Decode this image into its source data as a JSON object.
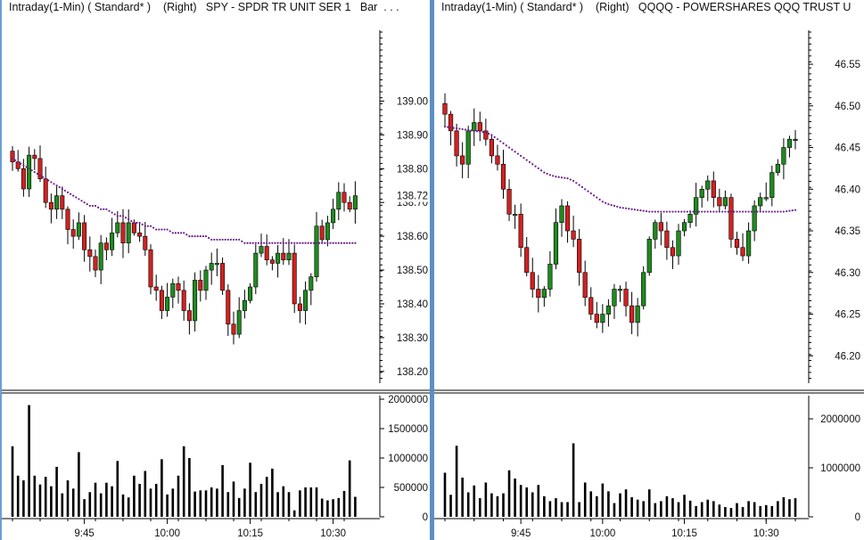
{
  "panels": [
    {
      "title": "Intraday(1-Min) ( Standard* )    (Right)   SPY - SPDR TR UNIT SER 1   Bar  . . ."
    },
    {
      "title": "Intraday(1-Min) ( Standard* )    (Right)   QQQQ - POWERSHARES QQQ TRUST U"
    }
  ],
  "colors": {
    "up": "#1e8b1e",
    "down": "#d42020",
    "ma": "#6b1f8a",
    "volume": "#000000",
    "divider": "#5b8fc8"
  },
  "chart_data": [
    {
      "type": "candlestick",
      "symbol": "SPY - SPDR TR UNIT SER 1",
      "price_ticks": [
        "139.00",
        "138.90",
        "138.80",
        "138.70",
        "138.60",
        "138.50",
        "138.40",
        "138.30",
        "138.20"
      ],
      "price_ylim": [
        138.16,
        139.22
      ],
      "last_price_label": "138.72",
      "volume_ticks": [
        "2000000",
        "1500000",
        "1000000",
        "500000",
        "0"
      ],
      "volume_ylim": [
        0,
        2000000
      ],
      "time_ticks": [
        "9:45",
        "10:00",
        "10:15",
        "10:30"
      ],
      "time_tick_index": [
        13,
        28,
        43,
        58
      ],
      "closes": [
        138.82,
        138.8,
        138.74,
        138.84,
        138.83,
        138.77,
        138.7,
        138.68,
        138.72,
        138.68,
        138.62,
        138.6,
        138.64,
        138.56,
        138.54,
        138.5,
        138.58,
        138.56,
        138.61,
        138.64,
        138.58,
        138.64,
        138.61,
        138.6,
        138.56,
        138.45,
        138.44,
        138.38,
        138.42,
        138.46,
        138.44,
        138.38,
        138.35,
        138.47,
        138.44,
        138.5,
        138.52,
        138.52,
        138.44,
        138.34,
        138.31,
        138.38,
        138.41,
        138.45,
        138.55,
        138.57,
        138.53,
        138.52,
        138.55,
        138.53,
        138.55,
        138.4,
        138.38,
        138.44,
        138.48,
        138.63,
        138.59,
        138.64,
        138.68,
        138.73,
        138.7,
        138.68,
        138.72
      ],
      "volume": [
        1200000,
        700000,
        620000,
        1900000,
        700000,
        550000,
        680000,
        520000,
        850000,
        400000,
        620000,
        480000,
        1100000,
        300000,
        420000,
        580000,
        400000,
        580000,
        520000,
        950000,
        380000,
        330000,
        700000,
        560000,
        780000,
        480000,
        560000,
        980000,
        380000,
        480000,
        700000,
        1200000,
        1000000,
        430000,
        450000,
        450000,
        500000,
        480000,
        880000,
        420000,
        600000,
        320000,
        480000,
        920000,
        420000,
        560000,
        680000,
        820000,
        420000,
        520000,
        420000,
        110000,
        450000,
        500000,
        500000,
        500000,
        310000,
        280000,
        300000,
        320000,
        440000,
        960000,
        340000
      ],
      "ma_line": [
        138.83,
        138.82,
        138.81,
        138.8,
        138.79,
        138.78,
        138.77,
        138.76,
        138.75,
        138.74,
        138.73,
        138.72,
        138.71,
        138.7,
        138.69,
        138.69,
        138.68,
        138.68,
        138.67,
        138.66,
        138.66,
        138.65,
        138.64,
        138.64,
        138.63,
        138.63,
        138.62,
        138.62,
        138.62,
        138.61,
        138.61,
        138.61,
        138.6,
        138.6,
        138.6,
        138.6,
        138.59,
        138.59,
        138.59,
        138.59,
        138.59,
        138.59,
        138.58,
        138.58,
        138.58,
        138.58,
        138.58,
        138.58,
        138.58,
        138.58,
        138.58,
        138.58,
        138.58,
        138.58,
        138.58,
        138.58,
        138.58,
        138.58,
        138.58,
        138.58,
        138.58,
        138.58,
        138.58
      ]
    },
    {
      "type": "candlestick",
      "symbol": "QQQQ - POWERSHARES QQQ TRUST U",
      "price_ticks": [
        "46.55",
        "46.50",
        "46.45",
        "46.40",
        "46.35",
        "46.30",
        "46.25",
        "46.20"
      ],
      "price_ylim": [
        46.165,
        46.595
      ],
      "volume_ticks": [
        "2000000",
        "1000000",
        "0"
      ],
      "volume_ylim": [
        0,
        2400000
      ],
      "time_ticks": [
        "9:45",
        "10:00",
        "10:15",
        "10:30"
      ],
      "time_tick_index": [
        13,
        27,
        41,
        55
      ],
      "closes": [
        46.49,
        46.47,
        46.44,
        46.43,
        46.47,
        46.48,
        46.47,
        46.46,
        46.44,
        46.43,
        46.4,
        46.37,
        46.37,
        46.33,
        46.3,
        46.28,
        46.27,
        46.28,
        46.31,
        46.36,
        46.38,
        46.35,
        46.34,
        46.3,
        46.27,
        46.25,
        46.24,
        46.25,
        46.26,
        46.28,
        46.28,
        46.26,
        46.24,
        46.26,
        46.3,
        46.34,
        46.36,
        46.35,
        46.33,
        46.32,
        46.35,
        46.36,
        46.37,
        46.39,
        46.4,
        46.41,
        46.39,
        46.38,
        46.39,
        46.34,
        46.33,
        46.32,
        46.35,
        46.38,
        46.39,
        46.39,
        46.42,
        46.43,
        46.45,
        46.46,
        46.46
      ],
      "volume": [
        900000,
        450000,
        1450000,
        800000,
        500000,
        640000,
        380000,
        700000,
        480000,
        420000,
        480000,
        950000,
        780000,
        650000,
        600000,
        500000,
        650000,
        420000,
        320000,
        380000,
        300000,
        300000,
        1500000,
        300000,
        700000,
        520000,
        420000,
        680000,
        520000,
        280000,
        480000,
        560000,
        400000,
        350000,
        320000,
        560000,
        280000,
        320000,
        420000,
        380000,
        300000,
        450000,
        330000,
        220000,
        300000,
        350000,
        320000,
        250000,
        200000,
        180000,
        280000,
        200000,
        320000,
        300000,
        220000,
        240000,
        220000,
        320000,
        400000,
        360000,
        380000
      ],
      "ma_line": [
        46.475,
        46.474,
        46.473,
        46.472,
        46.471,
        46.47,
        46.469,
        46.468,
        46.465,
        46.46,
        46.455,
        46.45,
        46.445,
        46.44,
        46.435,
        46.43,
        46.425,
        46.42,
        46.417,
        46.415,
        46.414,
        46.413,
        46.41,
        46.405,
        46.4,
        46.395,
        46.39,
        46.385,
        46.382,
        46.38,
        46.378,
        46.377,
        46.376,
        46.375,
        46.374,
        46.373,
        46.373,
        46.373,
        46.373,
        46.373,
        46.373,
        46.373,
        46.373,
        46.373,
        46.373,
        46.373,
        46.373,
        46.373,
        46.373,
        46.373,
        46.373,
        46.373,
        46.373,
        46.373,
        46.373,
        46.373,
        46.373,
        46.373,
        46.373,
        46.374,
        46.375
      ]
    }
  ]
}
